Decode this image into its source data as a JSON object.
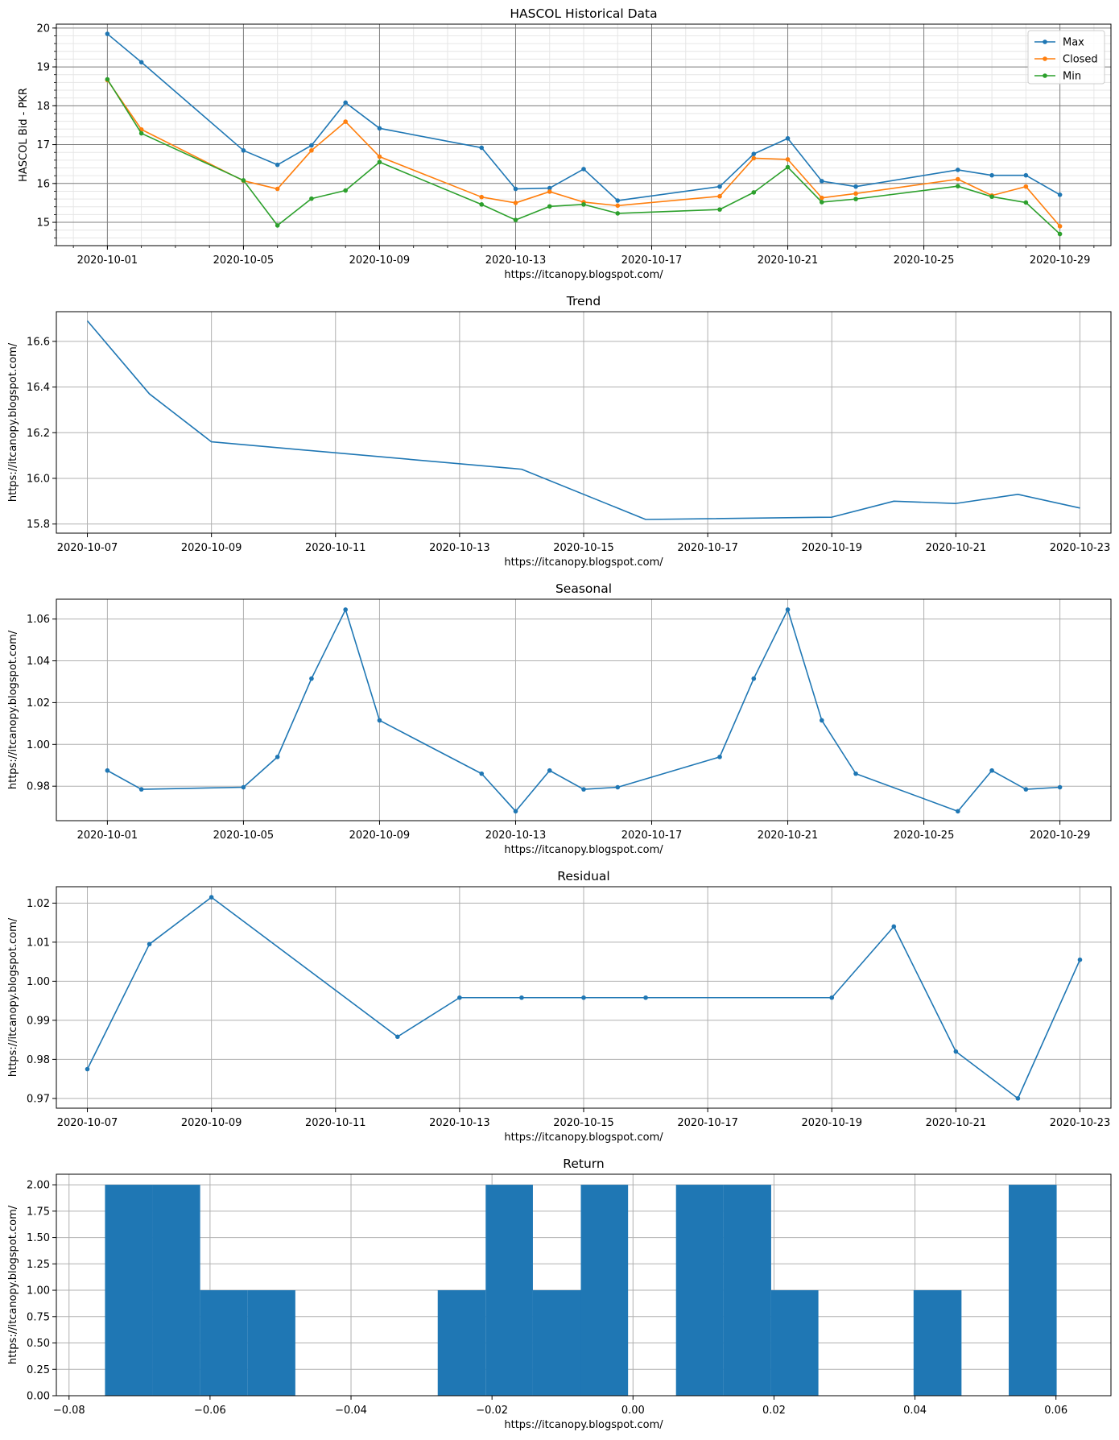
{
  "figure": {
    "watermark": "https://itcanopy.blogspot.com/"
  },
  "chart_data": [
    {
      "id": "hist",
      "type": "line",
      "title": "HASCOL Historical Data",
      "xlabel": "https://itcanopy.blogspot.com/",
      "ylabel": "HASCOL Bid - PKR",
      "x_type": "date",
      "xlim": [
        "2020-09-29T12:00",
        "2020-10-30T12:00"
      ],
      "ylim": [
        14.4,
        20.1
      ],
      "x_ticks": [
        "2020-10-01",
        "2020-10-05",
        "2020-10-09",
        "2020-10-13",
        "2020-10-17",
        "2020-10-21",
        "2020-10-25",
        "2020-10-29"
      ],
      "y_ticks": [
        15,
        16,
        17,
        18,
        19,
        20
      ],
      "grid": "major and minor",
      "legend": "top-right",
      "markers": true,
      "x": [
        "2020-10-01",
        "2020-10-02",
        "2020-10-05",
        "2020-10-06",
        "2020-10-07",
        "2020-10-08",
        "2020-10-09",
        "2020-10-12",
        "2020-10-13",
        "2020-10-14",
        "2020-10-15",
        "2020-10-16",
        "2020-10-19",
        "2020-10-20",
        "2020-10-21",
        "2020-10-22",
        "2020-10-23",
        "2020-10-26",
        "2020-10-27",
        "2020-10-28",
        "2020-10-29"
      ],
      "series": [
        {
          "name": "Max",
          "color": "#1f77b4",
          "values": [
            19.85,
            19.12,
            16.85,
            16.48,
            16.98,
            18.08,
            17.42,
            16.92,
            15.86,
            15.88,
            16.37,
            15.56,
            15.92,
            16.76,
            17.16,
            16.06,
            15.92,
            16.35,
            16.21,
            16.21,
            15.71
          ]
        },
        {
          "name": "Closed",
          "color": "#ff7f0e",
          "values": [
            18.66,
            17.39,
            16.07,
            15.86,
            16.85,
            17.59,
            16.69,
            15.65,
            15.5,
            15.79,
            15.52,
            15.43,
            15.67,
            16.65,
            16.62,
            15.63,
            15.74,
            16.11,
            15.69,
            15.92,
            14.9
          ]
        },
        {
          "name": "Min",
          "color": "#2ca02c",
          "values": [
            18.68,
            17.29,
            16.08,
            14.92,
            15.61,
            15.82,
            16.55,
            15.46,
            15.06,
            15.41,
            15.46,
            15.23,
            15.33,
            15.77,
            16.42,
            15.52,
            15.6,
            15.93,
            15.66,
            15.51,
            14.7
          ]
        }
      ]
    },
    {
      "id": "trend",
      "type": "line",
      "title": "Trend",
      "xlabel": "https://itcanopy.blogspot.com/",
      "ylabel": "https://itcanopy.blogspot.com/",
      "x_type": "date",
      "xlim": [
        "2020-10-06T12:00",
        "2020-10-23T12:00"
      ],
      "ylim": [
        15.76,
        16.73
      ],
      "x_ticks": [
        "2020-10-07",
        "2020-10-09",
        "2020-10-11",
        "2020-10-13",
        "2020-10-15",
        "2020-10-17",
        "2020-10-19",
        "2020-10-21",
        "2020-10-23"
      ],
      "y_ticks": [
        15.8,
        16.0,
        16.2,
        16.4,
        16.6
      ],
      "y_tick_labels": [
        "15.8",
        "16.0",
        "16.2",
        "16.4",
        "16.6"
      ],
      "grid": true,
      "markers": false,
      "x": [
        "2020-10-07",
        "2020-10-08",
        "2020-10-09",
        "2020-10-14",
        "2020-10-16",
        "2020-10-19",
        "2020-10-20",
        "2020-10-21",
        "2020-10-22",
        "2020-10-23"
      ],
      "series": [
        {
          "color": "#1f77b4",
          "values": [
            16.69,
            16.37,
            16.16,
            16.04,
            15.82,
            15.83,
            15.9,
            15.89,
            15.93,
            15.87
          ]
        }
      ]
    },
    {
      "id": "seasonal",
      "type": "line",
      "title": "Seasonal",
      "xlabel": "https://itcanopy.blogspot.com/",
      "ylabel": "https://itcanopy.blogspot.com/",
      "x_type": "date",
      "xlim": [
        "2020-09-29T12:00",
        "2020-10-30T12:00"
      ],
      "ylim": [
        0.9635,
        1.0695
      ],
      "x_ticks": [
        "2020-10-01",
        "2020-10-05",
        "2020-10-09",
        "2020-10-13",
        "2020-10-17",
        "2020-10-21",
        "2020-10-25",
        "2020-10-29"
      ],
      "y_ticks": [
        0.98,
        1.0,
        1.02,
        1.04,
        1.06
      ],
      "y_tick_labels": [
        "0.98",
        "1.00",
        "1.02",
        "1.04",
        "1.06"
      ],
      "grid": true,
      "markers": true,
      "x": [
        "2020-10-01",
        "2020-10-02",
        "2020-10-05",
        "2020-10-06",
        "2020-10-07",
        "2020-10-08",
        "2020-10-09",
        "2020-10-12",
        "2020-10-13",
        "2020-10-14",
        "2020-10-15",
        "2020-10-16",
        "2020-10-19",
        "2020-10-20",
        "2020-10-21",
        "2020-10-22",
        "2020-10-23",
        "2020-10-26",
        "2020-10-27",
        "2020-10-28",
        "2020-10-29"
      ],
      "series": [
        {
          "color": "#1f77b4",
          "values": [
            0.9875,
            0.9785,
            0.9795,
            0.994,
            1.0315,
            1.0645,
            1.0115,
            0.986,
            0.968,
            0.9875,
            0.9785,
            0.9795,
            0.994,
            1.0315,
            1.0645,
            1.0115,
            0.986,
            0.968,
            0.9875,
            0.9785,
            0.9795
          ]
        }
      ]
    },
    {
      "id": "residual",
      "type": "line",
      "title": "Residual",
      "xlabel": "https://itcanopy.blogspot.com/",
      "ylabel": "https://itcanopy.blogspot.com/",
      "x_type": "date",
      "xlim": [
        "2020-10-06T12:00",
        "2020-10-23T12:00"
      ],
      "ylim": [
        0.9675,
        1.0242
      ],
      "x_ticks": [
        "2020-10-07",
        "2020-10-09",
        "2020-10-11",
        "2020-10-13",
        "2020-10-15",
        "2020-10-17",
        "2020-10-19",
        "2020-10-21",
        "2020-10-23"
      ],
      "y_ticks": [
        0.97,
        0.98,
        0.99,
        1.0,
        1.01,
        1.02
      ],
      "y_tick_labels": [
        "0.97",
        "0.98",
        "0.99",
        "1.00",
        "1.01",
        "1.02"
      ],
      "grid": true,
      "markers": true,
      "x": [
        "2020-10-07",
        "2020-10-08",
        "2020-10-09",
        "2020-10-12",
        "2020-10-13",
        "2020-10-14",
        "2020-10-15",
        "2020-10-16",
        "2020-10-19",
        "2020-10-20",
        "2020-10-21",
        "2020-10-22",
        "2020-10-23"
      ],
      "series": [
        {
          "color": "#1f77b4",
          "values": [
            0.9775,
            1.0095,
            1.0215,
            0.9858,
            0.9958,
            0.9958,
            0.9958,
            0.9958,
            0.9958,
            1.014,
            0.982,
            0.97,
            1.0055
          ]
        }
      ]
    },
    {
      "id": "return",
      "type": "bar",
      "title": "Return",
      "xlabel": "https://itcanopy.blogspot.com/",
      "ylabel": "https://itcanopy.blogspot.com/",
      "xlim": [
        -0.0818,
        0.0678
      ],
      "ylim": [
        0,
        2.1
      ],
      "x_ticks": [
        -0.08,
        -0.06,
        -0.04,
        -0.02,
        0.0,
        0.02,
        0.04,
        0.06
      ],
      "x_tick_labels": [
        "−0.08",
        "−0.06",
        "−0.04",
        "−0.02",
        "0.00",
        "0.02",
        "0.04",
        "0.06"
      ],
      "y_ticks": [
        0.0,
        0.25,
        0.5,
        0.75,
        1.0,
        1.25,
        1.5,
        1.75,
        2.0
      ],
      "y_tick_labels": [
        "0.00",
        "0.25",
        "0.50",
        "0.75",
        "1.00",
        "1.25",
        "1.50",
        "1.75",
        "2.00"
      ],
      "grid": true,
      "color": "#1f77b4",
      "bins": [
        {
          "x0": -0.0749,
          "x1": -0.0681,
          "value": 2
        },
        {
          "x0": -0.0681,
          "x1": -0.0614,
          "value": 2
        },
        {
          "x0": -0.0614,
          "x1": -0.0547,
          "value": 1
        },
        {
          "x0": -0.0547,
          "x1": -0.0479,
          "value": 1
        },
        {
          "x0": -0.0479,
          "x1": -0.0412,
          "value": 0
        },
        {
          "x0": -0.0412,
          "x1": -0.0344,
          "value": 0
        },
        {
          "x0": -0.0344,
          "x1": -0.0277,
          "value": 0
        },
        {
          "x0": -0.0277,
          "x1": -0.0209,
          "value": 1
        },
        {
          "x0": -0.0209,
          "x1": -0.0142,
          "value": 2
        },
        {
          "x0": -0.0142,
          "x1": -0.0074,
          "value": 1
        },
        {
          "x0": -0.0074,
          "x1": -0.0007,
          "value": 2
        },
        {
          "x0": -0.0007,
          "x1": 0.0061,
          "value": 0
        },
        {
          "x0": 0.0061,
          "x1": 0.0128,
          "value": 2
        },
        {
          "x0": 0.0128,
          "x1": 0.0196,
          "value": 2
        },
        {
          "x0": 0.0196,
          "x1": 0.0263,
          "value": 1
        },
        {
          "x0": 0.0263,
          "x1": 0.0331,
          "value": 0
        },
        {
          "x0": 0.0331,
          "x1": 0.0398,
          "value": 0
        },
        {
          "x0": 0.0398,
          "x1": 0.0466,
          "value": 1
        },
        {
          "x0": 0.0466,
          "x1": 0.0533,
          "value": 0
        },
        {
          "x0": 0.0533,
          "x1": 0.0601,
          "value": 2
        }
      ]
    }
  ]
}
